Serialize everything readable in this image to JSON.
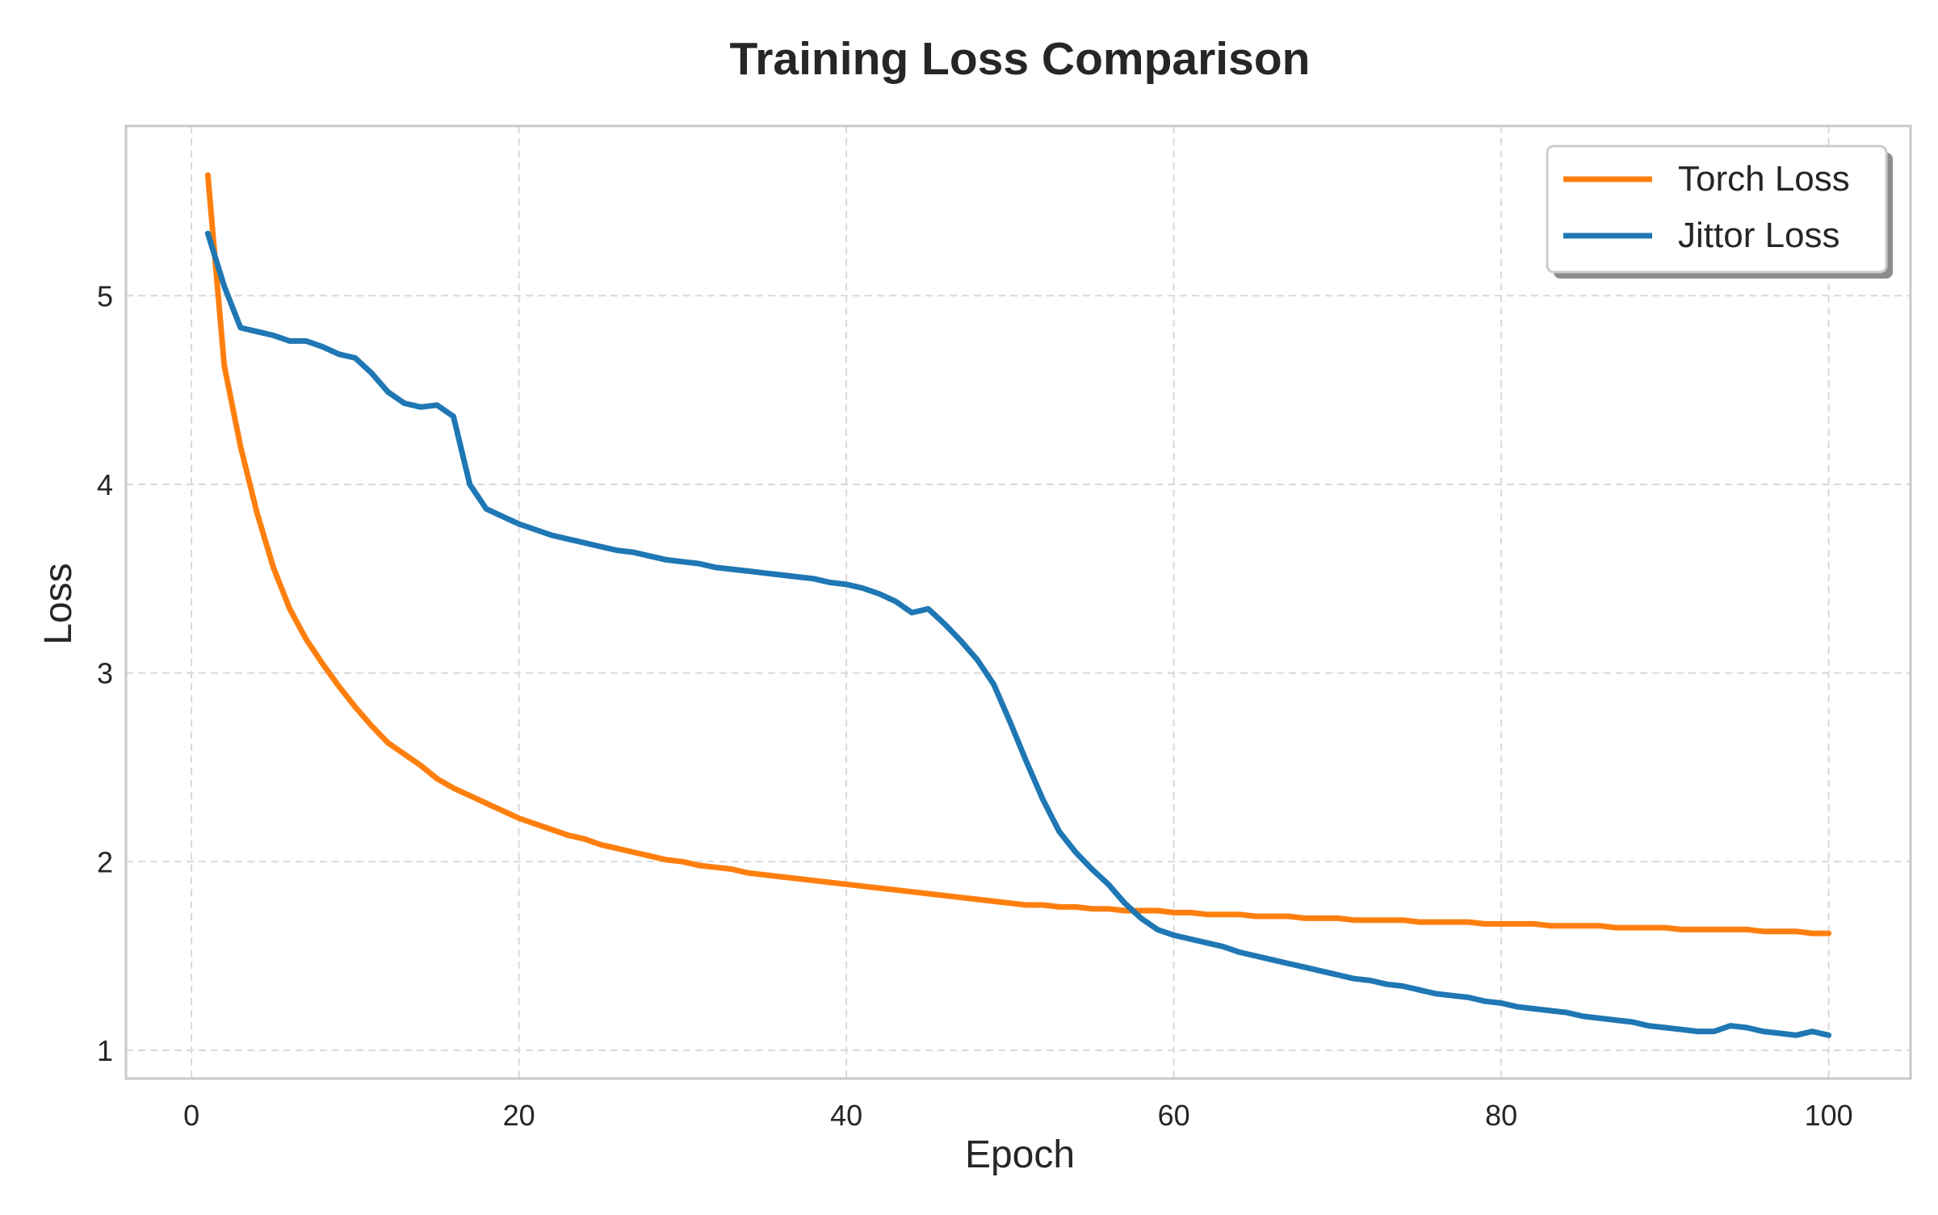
{
  "chart_data": {
    "type": "line",
    "title": "Training Loss Comparison",
    "xlabel": "Epoch",
    "ylabel": "Loss",
    "xlim": [
      -4,
      105
    ],
    "ylim": [
      0.85,
      5.9
    ],
    "xticks": [
      0,
      20,
      40,
      60,
      80,
      100
    ],
    "yticks": [
      1,
      2,
      3,
      4,
      5
    ],
    "grid": true,
    "legend_position": "top-right",
    "series": [
      {
        "name": "Torch Loss",
        "color": "#ff7f0e",
        "x": [
          1,
          2,
          3,
          4,
          5,
          6,
          7,
          8,
          9,
          10,
          11,
          12,
          13,
          14,
          15,
          16,
          17,
          18,
          19,
          20,
          21,
          22,
          23,
          24,
          25,
          26,
          27,
          28,
          29,
          30,
          31,
          32,
          33,
          34,
          35,
          36,
          37,
          38,
          39,
          40,
          41,
          42,
          43,
          44,
          45,
          46,
          47,
          48,
          49,
          50,
          51,
          52,
          53,
          54,
          55,
          56,
          57,
          58,
          59,
          60,
          61,
          62,
          63,
          64,
          65,
          66,
          67,
          68,
          69,
          70,
          71,
          72,
          73,
          74,
          75,
          76,
          77,
          78,
          79,
          80,
          81,
          82,
          83,
          84,
          85,
          86,
          87,
          88,
          89,
          90,
          91,
          92,
          93,
          94,
          95,
          96,
          97,
          98,
          99,
          100
        ],
        "values": [
          5.64,
          4.63,
          4.2,
          3.85,
          3.56,
          3.34,
          3.18,
          3.05,
          2.93,
          2.82,
          2.72,
          2.63,
          2.57,
          2.51,
          2.44,
          2.39,
          2.35,
          2.31,
          2.27,
          2.23,
          2.2,
          2.17,
          2.14,
          2.12,
          2.09,
          2.07,
          2.05,
          2.03,
          2.01,
          2.0,
          1.98,
          1.97,
          1.96,
          1.94,
          1.93,
          1.92,
          1.91,
          1.9,
          1.89,
          1.88,
          1.87,
          1.86,
          1.85,
          1.84,
          1.83,
          1.82,
          1.81,
          1.8,
          1.79,
          1.78,
          1.77,
          1.77,
          1.76,
          1.76,
          1.75,
          1.75,
          1.74,
          1.74,
          1.74,
          1.73,
          1.73,
          1.72,
          1.72,
          1.72,
          1.71,
          1.71,
          1.71,
          1.7,
          1.7,
          1.7,
          1.69,
          1.69,
          1.69,
          1.69,
          1.68,
          1.68,
          1.68,
          1.68,
          1.67,
          1.67,
          1.67,
          1.67,
          1.66,
          1.66,
          1.66,
          1.66,
          1.65,
          1.65,
          1.65,
          1.65,
          1.64,
          1.64,
          1.64,
          1.64,
          1.64,
          1.63,
          1.63,
          1.63,
          1.62,
          1.62
        ]
      },
      {
        "name": "Jittor Loss",
        "color": "#1f77b4",
        "x": [
          1,
          2,
          3,
          4,
          5,
          6,
          7,
          8,
          9,
          10,
          11,
          12,
          13,
          14,
          15,
          16,
          17,
          18,
          19,
          20,
          21,
          22,
          23,
          24,
          25,
          26,
          27,
          28,
          29,
          30,
          31,
          32,
          33,
          34,
          35,
          36,
          37,
          38,
          39,
          40,
          41,
          42,
          43,
          44,
          45,
          46,
          47,
          48,
          49,
          50,
          51,
          52,
          53,
          54,
          55,
          56,
          57,
          58,
          59,
          60,
          61,
          62,
          63,
          64,
          65,
          66,
          67,
          68,
          69,
          70,
          71,
          72,
          73,
          74,
          75,
          76,
          77,
          78,
          79,
          80,
          81,
          82,
          83,
          84,
          85,
          86,
          87,
          88,
          89,
          90,
          91,
          92,
          93,
          94,
          95,
          96,
          97,
          98,
          99,
          100
        ],
        "values": [
          5.33,
          5.05,
          4.83,
          4.81,
          4.79,
          4.76,
          4.76,
          4.73,
          4.69,
          4.67,
          4.59,
          4.49,
          4.43,
          4.41,
          4.42,
          4.36,
          4.0,
          3.87,
          3.83,
          3.79,
          3.76,
          3.73,
          3.71,
          3.69,
          3.67,
          3.65,
          3.64,
          3.62,
          3.6,
          3.59,
          3.58,
          3.56,
          3.55,
          3.54,
          3.53,
          3.52,
          3.51,
          3.5,
          3.48,
          3.47,
          3.45,
          3.42,
          3.38,
          3.32,
          3.34,
          3.26,
          3.17,
          3.07,
          2.94,
          2.74,
          2.53,
          2.33,
          2.16,
          2.05,
          1.96,
          1.88,
          1.78,
          1.7,
          1.64,
          1.61,
          1.59,
          1.57,
          1.55,
          1.52,
          1.5,
          1.48,
          1.46,
          1.44,
          1.42,
          1.4,
          1.38,
          1.37,
          1.35,
          1.34,
          1.32,
          1.3,
          1.29,
          1.28,
          1.26,
          1.25,
          1.23,
          1.22,
          1.21,
          1.2,
          1.18,
          1.17,
          1.16,
          1.15,
          1.13,
          1.12,
          1.11,
          1.1,
          1.1,
          1.13,
          1.12,
          1.1,
          1.09,
          1.08,
          1.1,
          1.08
        ]
      }
    ]
  }
}
